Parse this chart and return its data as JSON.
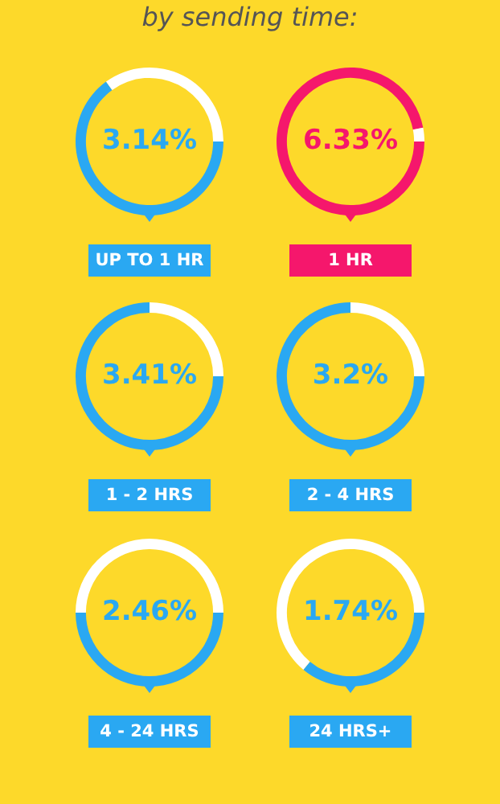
{
  "chart_data": [
    {
      "type": "other",
      "title": "by sending time:"
    },
    {
      "type": "donut",
      "categories": [
        "UP TO 1 HR",
        null
      ],
      "values": [
        65,
        35
      ],
      "colors": [
        "#2aa8f2",
        "#ffffff"
      ],
      "annotations": [
        "3.14%"
      ]
    },
    {
      "type": "donut",
      "categories": [
        "1 HR",
        null
      ],
      "values": [
        97,
        3
      ],
      "colors": [
        "#f5176c",
        "#ffffff"
      ],
      "annotations": [
        "6.33%"
      ]
    },
    {
      "type": "donut",
      "categories": [
        "1 - 2 HRS",
        null
      ],
      "values": [
        75,
        25
      ],
      "colors": [
        "#2aa8f2",
        "#ffffff"
      ],
      "annotations": [
        "3.41%"
      ]
    },
    {
      "type": "donut",
      "categories": [
        "2 - 4 HRS",
        null
      ],
      "values": [
        75,
        25
      ],
      "colors": [
        "#2aa8f2",
        "#ffffff"
      ],
      "annotations": [
        "3.2%"
      ]
    },
    {
      "type": "donut",
      "categories": [
        "4 - 24 HRS",
        null
      ],
      "values": [
        50,
        50
      ],
      "colors": [
        "#2aa8f2",
        "#ffffff"
      ],
      "annotations": [
        "2.46%"
      ]
    },
    {
      "type": "donut",
      "categories": [
        "24 HRS+",
        null
      ],
      "values": [
        36,
        64
      ],
      "colors": [
        "#2aa8f2",
        "#ffffff"
      ],
      "annotations": [
        "1.74%"
      ]
    }
  ]
}
